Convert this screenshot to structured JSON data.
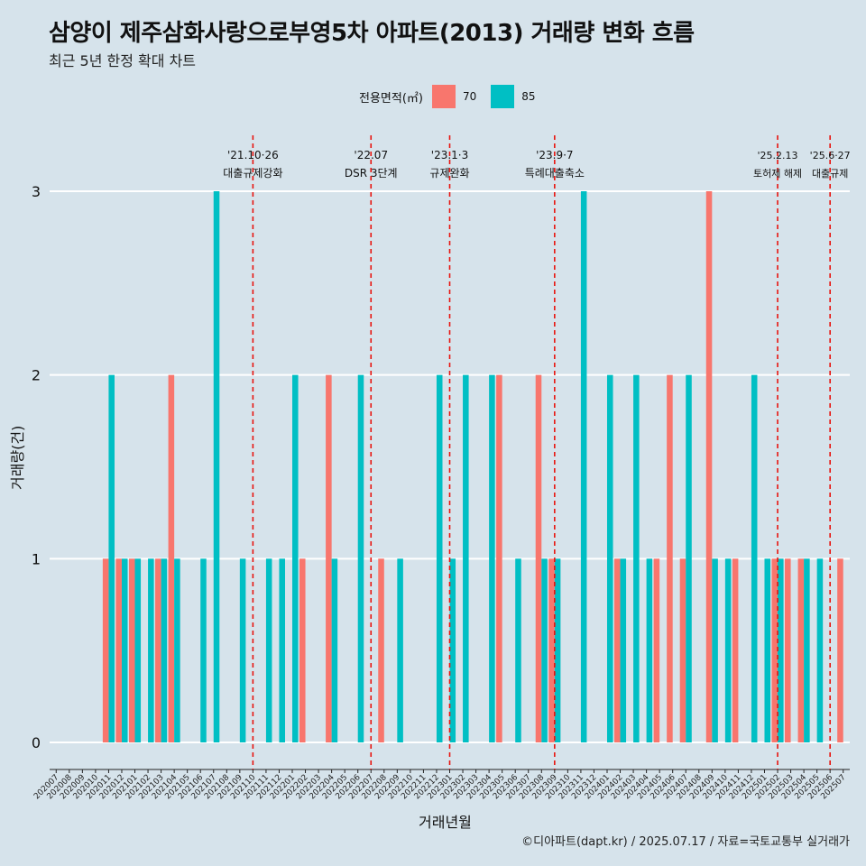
{
  "chart_data": {
    "type": "bar",
    "title": "삼양이 제주삼화사랑으로부영5차 아파트(2013) 거래량 변화 흐름",
    "subtitle": "최근 5년 한정 확대 차트",
    "xlabel": "거래년월",
    "ylabel": "거래량(건)",
    "legend_title": "전용면적(㎡)",
    "legend_position": "top",
    "caption": "©디아파트(dapt.kr) / 2025.07.17 / 자료=국토교통부 실거래가",
    "ylim": [
      0,
      3
    ],
    "yticks": [
      0,
      1,
      2,
      3
    ],
    "categories": [
      "202007",
      "202008",
      "202009",
      "202010",
      "202011",
      "202012",
      "202101",
      "202102",
      "202103",
      "202104",
      "202105",
      "202106",
      "202107",
      "202108",
      "202109",
      "202110",
      "202111",
      "202112",
      "202201",
      "202202",
      "202203",
      "202204",
      "202205",
      "202206",
      "202207",
      "202208",
      "202209",
      "202210",
      "202211",
      "202212",
      "202301",
      "202302",
      "202303",
      "202304",
      "202305",
      "202306",
      "202307",
      "202308",
      "202309",
      "202310",
      "202311",
      "202312",
      "202401",
      "202402",
      "202403",
      "202404",
      "202405",
      "202406",
      "202407",
      "202408",
      "202409",
      "202410",
      "202411",
      "202412",
      "202501",
      "202502",
      "202503",
      "202504",
      "202505",
      "202506",
      "202507"
    ],
    "series": [
      {
        "name": "70",
        "color": "#f8766d",
        "values": [
          0,
          0,
          0,
          0,
          1,
          1,
          1,
          0,
          1,
          2,
          0,
          0,
          0,
          0,
          0,
          0,
          0,
          0,
          0,
          1,
          0,
          2,
          0,
          0,
          0,
          1,
          0,
          0,
          0,
          0,
          0,
          0,
          0,
          0,
          2,
          0,
          0,
          2,
          1,
          0,
          0,
          0,
          0,
          1,
          0,
          0,
          1,
          2,
          1,
          0,
          3,
          0,
          1,
          0,
          0,
          1,
          1,
          1,
          0,
          0,
          1
        ]
      },
      {
        "name": "85",
        "color": "#00bfc4",
        "values": [
          0,
          0,
          0,
          0,
          2,
          1,
          1,
          1,
          1,
          1,
          0,
          1,
          3,
          0,
          1,
          0,
          1,
          1,
          2,
          0,
          0,
          1,
          0,
          2,
          0,
          0,
          1,
          0,
          0,
          2,
          1,
          2,
          0,
          2,
          0,
          1,
          0,
          1,
          1,
          0,
          3,
          0,
          2,
          1,
          2,
          1,
          0,
          0,
          2,
          0,
          1,
          1,
          0,
          2,
          1,
          1,
          0,
          1,
          1,
          0,
          0
        ]
      }
    ],
    "events": [
      {
        "at": "202110",
        "date": "'21.10·26",
        "label": "대출규제강화"
      },
      {
        "at": "202207",
        "date": "'22.07",
        "label": "DSR 3단계"
      },
      {
        "at": "202301",
        "date": "'23.1·3",
        "label": "규제완화"
      },
      {
        "at": "202309",
        "date": "'23.9·7",
        "label": "특례대출축소"
      },
      {
        "at": "202502",
        "date": "'25.2.13",
        "label": "토허제 해제"
      },
      {
        "at": "202506",
        "date": "'25.6·27",
        "label": "대출규제"
      }
    ],
    "grid": true
  }
}
